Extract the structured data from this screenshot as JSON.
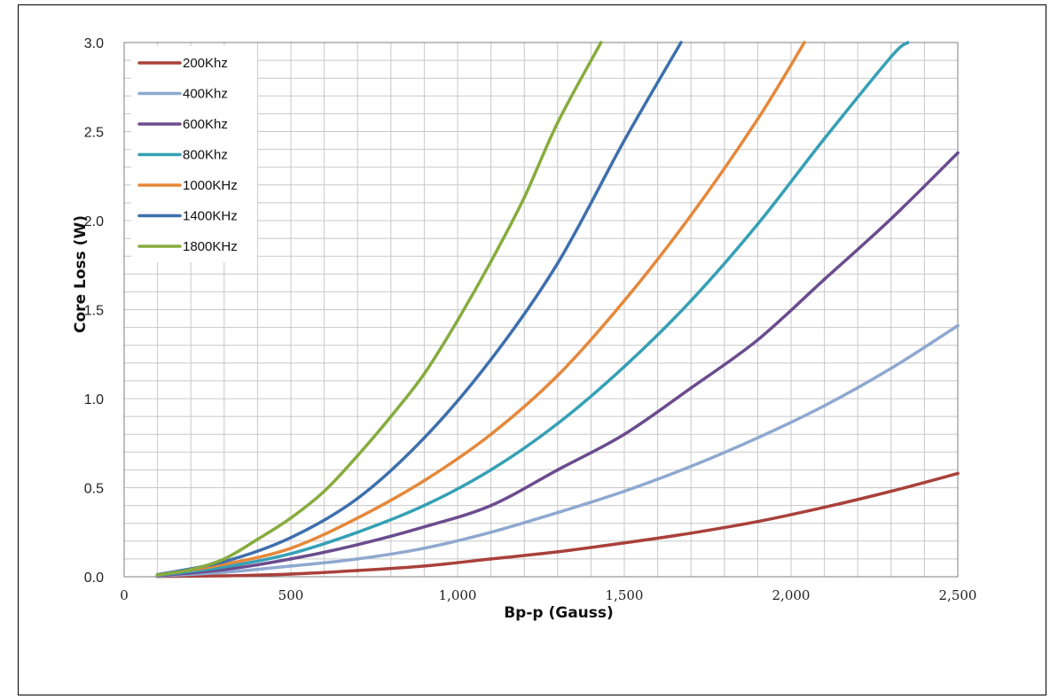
{
  "chart_data": {
    "type": "line",
    "title": "",
    "xlabel": "Bp-p (Gauss)",
    "ylabel": "Core Loss (W)",
    "xlim": [
      0,
      2500
    ],
    "ylim": [
      0,
      3.0
    ],
    "x_ticks": [
      0,
      500,
      1000,
      1500,
      2000,
      2500
    ],
    "x_tick_labels": [
      "0",
      "500",
      "1,000",
      "1,500",
      "2,000",
      "2,500"
    ],
    "y_ticks": [
      0,
      0.5,
      1.0,
      1.5,
      2.0,
      2.5,
      3.0
    ],
    "y_tick_labels": [
      "0.0",
      "0.5",
      "1.0",
      "1.5",
      "2.0",
      "2.5",
      "3.0"
    ],
    "grid": true,
    "legend_position": "top-left",
    "series": [
      {
        "name": "200Khz",
        "color": "#A9413B",
        "x": [
          100,
          300,
          500,
          700,
          900,
          1100,
          1300,
          1500,
          1700,
          1900,
          2100,
          2300,
          2500
        ],
        "y": [
          0.002,
          0.005,
          0.015,
          0.035,
          0.06,
          0.1,
          0.14,
          0.19,
          0.245,
          0.31,
          0.39,
          0.48,
          0.58
        ]
      },
      {
        "name": "400Khz",
        "color": "#8FA8D0",
        "x": [
          100,
          300,
          500,
          700,
          900,
          1100,
          1300,
          1500,
          1700,
          1900,
          2100,
          2300,
          2500
        ],
        "y": [
          0.004,
          0.025,
          0.06,
          0.1,
          0.16,
          0.25,
          0.36,
          0.48,
          0.62,
          0.78,
          0.96,
          1.17,
          1.41
        ]
      },
      {
        "name": "600Khz",
        "color": "#6B4C8E",
        "x": [
          100,
          300,
          500,
          700,
          900,
          1100,
          1300,
          1500,
          1700,
          1900,
          2100,
          2300,
          2500
        ],
        "y": [
          0.006,
          0.04,
          0.1,
          0.18,
          0.28,
          0.4,
          0.6,
          0.8,
          1.06,
          1.33,
          1.67,
          2.01,
          2.38
        ]
      },
      {
        "name": "800Khz",
        "color": "#35A0B5",
        "x": [
          100,
          300,
          500,
          700,
          900,
          1100,
          1300,
          1500,
          1700,
          1900,
          2100,
          2300,
          2350
        ],
        "y": [
          0.008,
          0.055,
          0.13,
          0.25,
          0.4,
          0.6,
          0.86,
          1.18,
          1.55,
          1.98,
          2.46,
          2.92,
          3.0
        ]
      },
      {
        "name": "1000KHz",
        "color": "#E5883A",
        "x": [
          100,
          300,
          500,
          700,
          900,
          1100,
          1300,
          1500,
          1700,
          1900,
          2040
        ],
        "y": [
          0.01,
          0.07,
          0.16,
          0.33,
          0.54,
          0.8,
          1.13,
          1.55,
          2.03,
          2.57,
          3.0
        ]
      },
      {
        "name": "1400KHz",
        "color": "#3E6FAD",
        "x": [
          100,
          300,
          500,
          700,
          900,
          1100,
          1300,
          1500,
          1670
        ],
        "y": [
          0.012,
          0.085,
          0.22,
          0.44,
          0.78,
          1.22,
          1.76,
          2.45,
          3.0
        ]
      },
      {
        "name": "1800KHz",
        "color": "#86AC3E",
        "x": [
          100,
          200,
          300,
          400,
          500,
          600,
          700,
          800,
          900,
          1000,
          1100,
          1200,
          1300,
          1430
        ],
        "y": [
          0.01,
          0.04,
          0.1,
          0.21,
          0.33,
          0.48,
          0.68,
          0.9,
          1.14,
          1.44,
          1.77,
          2.13,
          2.55,
          3.0
        ]
      }
    ]
  }
}
